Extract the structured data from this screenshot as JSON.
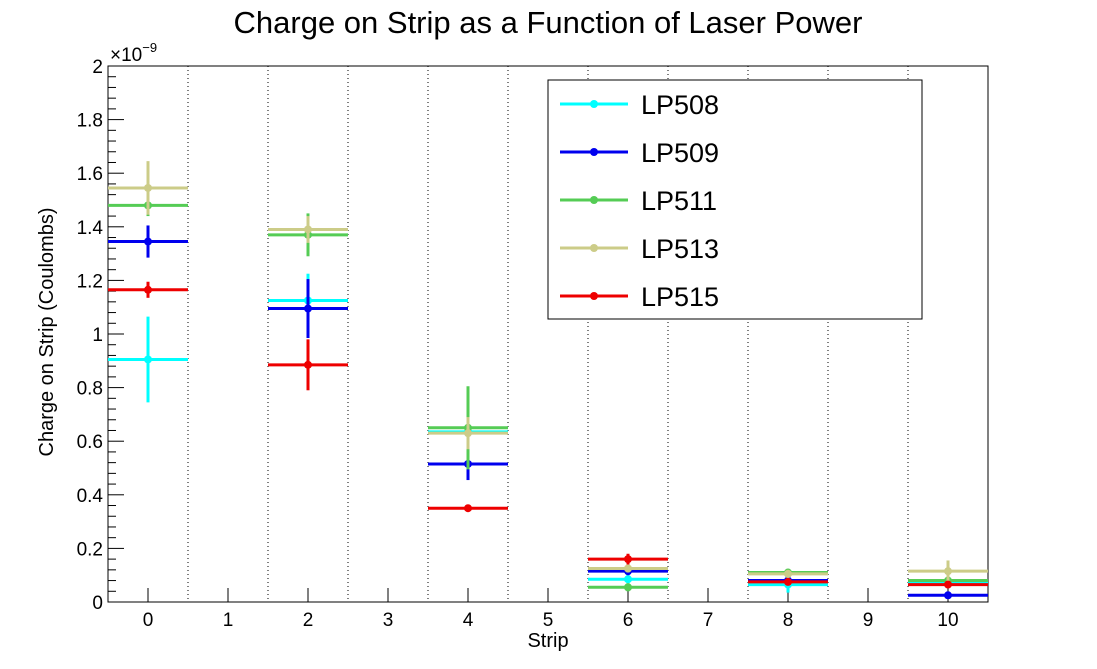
{
  "chart_data": {
    "type": "scatter",
    "title": "Charge on Strip as a Function of Laser Power",
    "xlabel": "Strip",
    "ylabel": "Charge on Strip (Coulombs)",
    "y_multiplier_base": "×10",
    "y_multiplier_exp": "−9",
    "xlim": [
      -0.5,
      10.5
    ],
    "ylim": [
      0,
      2
    ],
    "x_ticks": [
      "0",
      "1",
      "2",
      "3",
      "4",
      "5",
      "6",
      "7",
      "8",
      "9",
      "10"
    ],
    "y_ticks": [
      "0",
      "0.2",
      "0.4",
      "0.6",
      "0.8",
      "1",
      "1.2",
      "1.4",
      "1.6",
      "1.8",
      "2"
    ],
    "grid": "vertical dotted",
    "legend_position": "top-right",
    "x_bin_half_width": 0.5,
    "series": [
      {
        "name": "LP508",
        "color": "#00ffff",
        "x": [
          0,
          2,
          4,
          6,
          8,
          10
        ],
        "y": [
          0.905,
          1.125,
          0.635,
          0.085,
          0.065,
          0.07
        ],
        "yerr": [
          0.16,
          0.1,
          0.03,
          0.015,
          0.03,
          0.01
        ]
      },
      {
        "name": "LP509",
        "color": "#0000ee",
        "x": [
          0,
          2,
          4,
          6,
          8,
          10
        ],
        "y": [
          1.345,
          1.095,
          0.515,
          0.115,
          0.08,
          0.025
        ],
        "yerr": [
          0.06,
          0.11,
          0.06,
          0.015,
          0.015,
          0.008
        ]
      },
      {
        "name": "LP511",
        "color": "#55cc55",
        "x": [
          0,
          2,
          4,
          6,
          8,
          10
        ],
        "y": [
          1.48,
          1.37,
          0.65,
          0.055,
          0.11,
          0.08
        ],
        "yerr": [
          0.04,
          0.08,
          0.155,
          0.015,
          0.01,
          0.01
        ]
      },
      {
        "name": "LP513",
        "color": "#cccc88",
        "x": [
          0,
          2,
          4,
          6,
          8,
          10
        ],
        "y": [
          1.545,
          1.39,
          0.63,
          0.125,
          0.105,
          0.115
        ],
        "yerr": [
          0.1,
          0.05,
          0.06,
          0.015,
          0.015,
          0.04
        ]
      },
      {
        "name": "LP515",
        "color": "#ee0000",
        "x": [
          0,
          2,
          4,
          6,
          8,
          10
        ],
        "y": [
          1.165,
          0.885,
          0.35,
          0.16,
          0.075,
          0.065
        ],
        "yerr": [
          0.03,
          0.095,
          0.012,
          0.02,
          0.012,
          0.01
        ]
      }
    ]
  }
}
